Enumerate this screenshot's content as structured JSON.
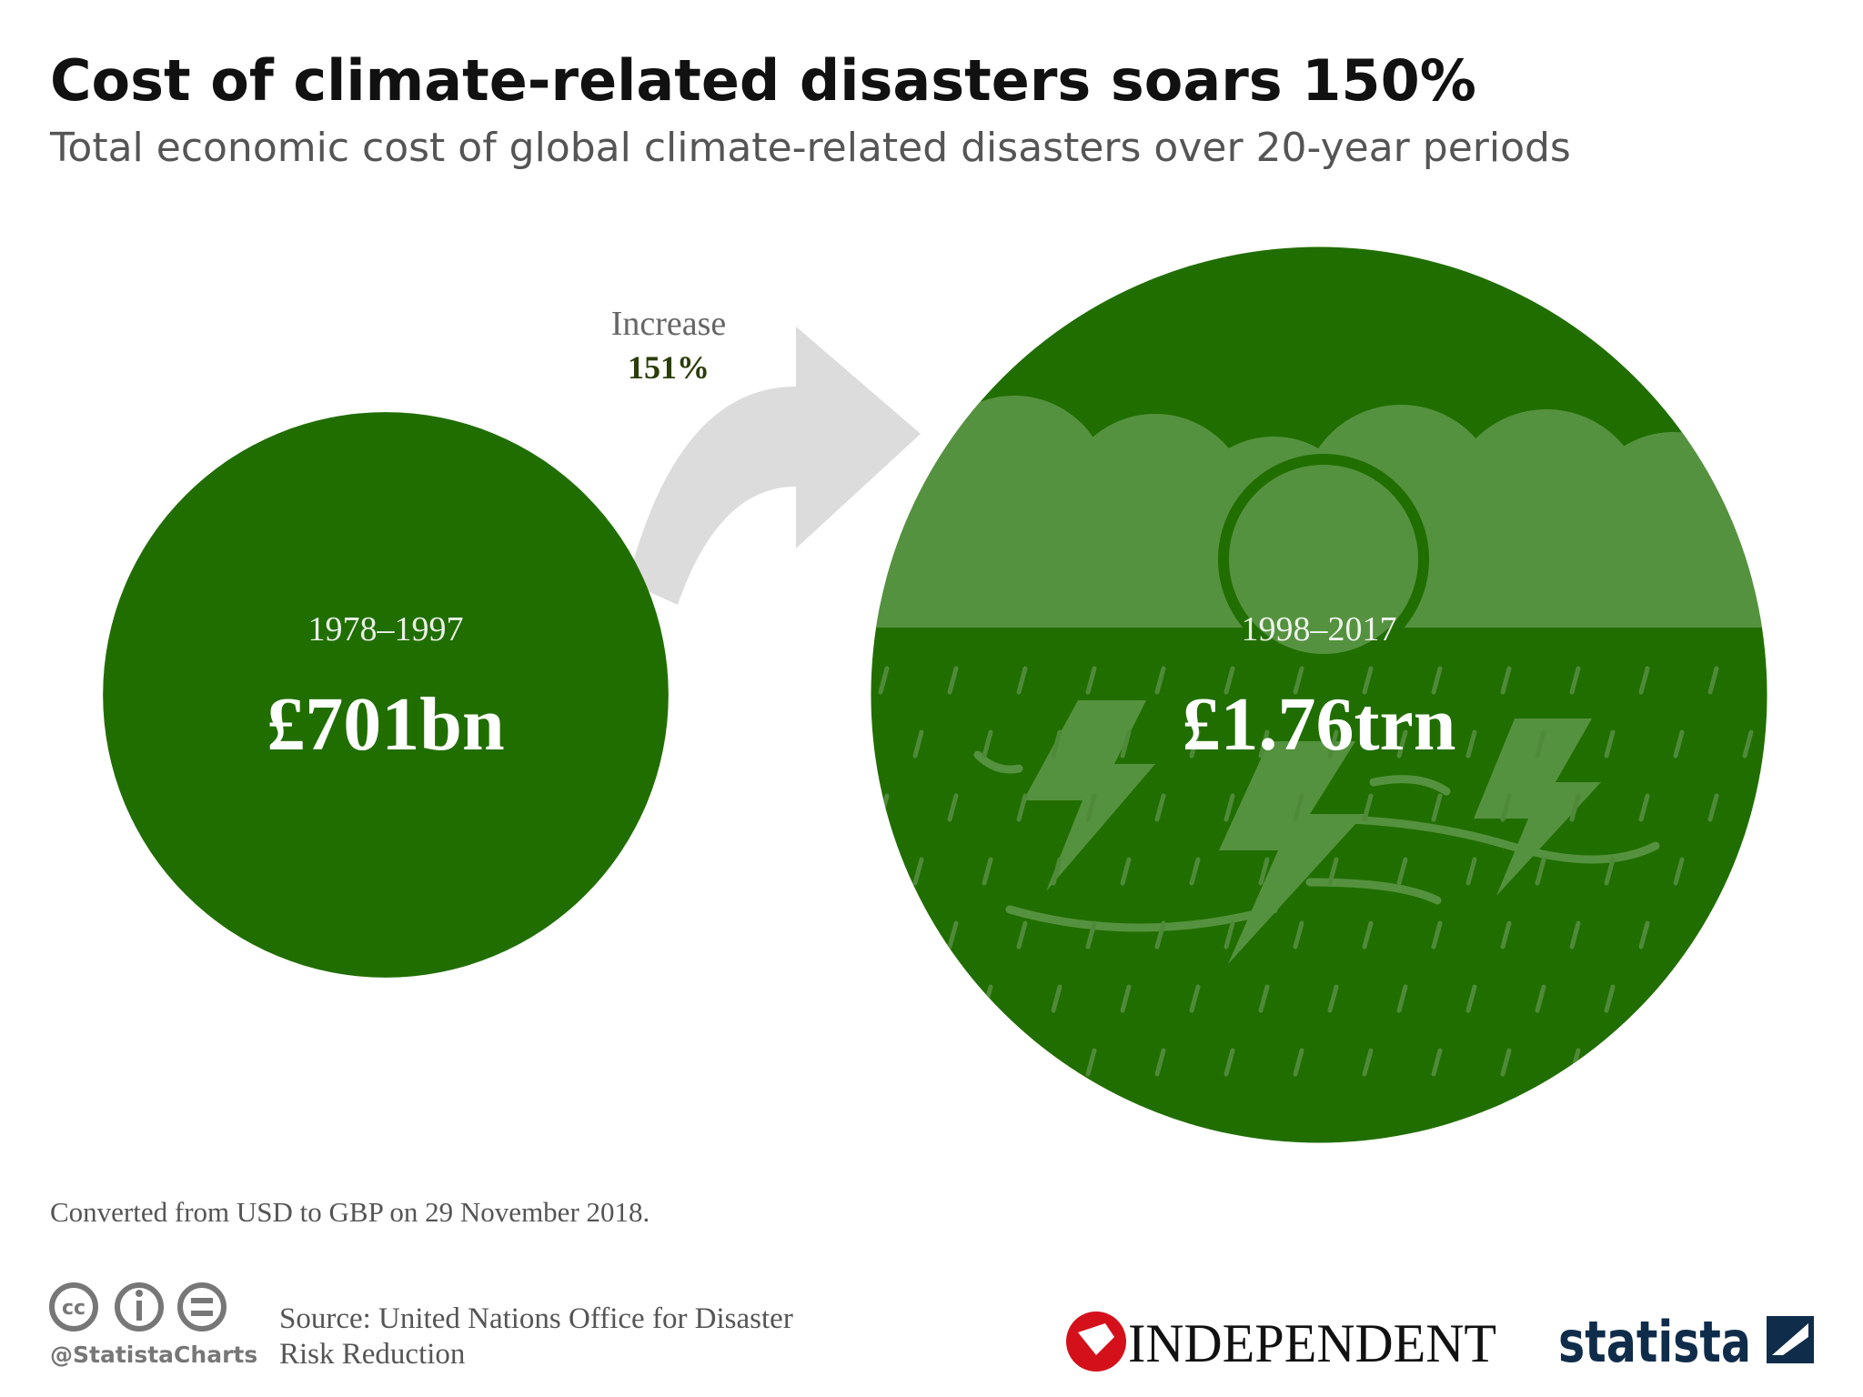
{
  "chart_data": {
    "type": "circles",
    "title": "Cost of climate-related disasters soars 150%",
    "subtitle": "Total economic cost of global climate-related disasters over 20-year periods",
    "categories": [
      "1978–1997",
      "1998–2017"
    ],
    "values": [
      701,
      1760
    ],
    "value_labels": [
      "£701bn",
      "£1.76trn"
    ],
    "color": "#216e00",
    "annotation": {
      "label": "Increase",
      "text": "151%"
    },
    "note": "Converted from USD to GBP on 29 November 2018.",
    "source": [
      "Source: United Nations Office for Disaster",
      "Risk Reduction"
    ],
    "credit": "@StatistaCharts",
    "logos": [
      "INDEPENDENT",
      "statista"
    ]
  }
}
